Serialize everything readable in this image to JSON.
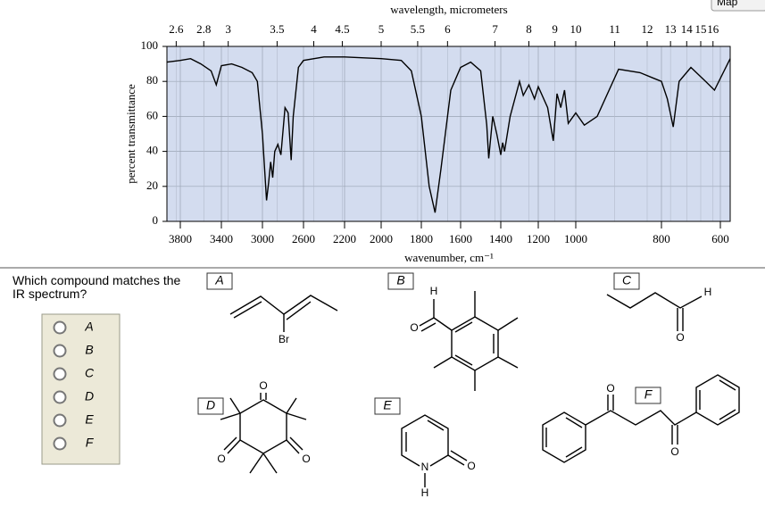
{
  "toolbar": {
    "map": "Map"
  },
  "chart_data": {
    "type": "line",
    "x2label": "wavelength, micrometers",
    "xlabel": "wavenumber, cm⁻¹",
    "ylabel": "percent transmittance",
    "xlim": [
      3950,
      580
    ],
    "xticks": [
      3800,
      3400,
      3000,
      2600,
      2200,
      2000,
      1800,
      1600,
      1400,
      1200,
      1000,
      800,
      600
    ],
    "x2ticks": [
      2.6,
      2.8,
      3,
      3.5,
      4,
      4.5,
      5,
      5.5,
      6,
      7,
      8,
      9,
      10,
      11,
      12,
      13,
      14,
      15,
      16
    ],
    "ylim": [
      0,
      100
    ],
    "yticks": [
      0,
      20,
      40,
      60,
      80,
      100
    ],
    "grid": true,
    "color": "#000000",
    "x": [
      3950,
      3800,
      3700,
      3600,
      3500,
      3450,
      3400,
      3300,
      3200,
      3100,
      3050,
      3000,
      2960,
      2940,
      2920,
      2900,
      2880,
      2850,
      2820,
      2780,
      2750,
      2720,
      2700,
      2650,
      2600,
      2400,
      2200,
      2000,
      1900,
      1850,
      1800,
      1760,
      1730,
      1700,
      1650,
      1600,
      1550,
      1500,
      1470,
      1460,
      1440,
      1420,
      1400,
      1390,
      1380,
      1350,
      1300,
      1280,
      1250,
      1220,
      1200,
      1150,
      1120,
      1100,
      1080,
      1060,
      1040,
      1000,
      980,
      950,
      900,
      850,
      820,
      800,
      780,
      760,
      740,
      700,
      650,
      620,
      580
    ],
    "values": [
      91,
      92,
      93,
      90,
      86,
      78,
      89,
      90,
      88,
      85,
      80,
      50,
      12,
      22,
      34,
      25,
      40,
      44,
      38,
      65,
      62,
      35,
      60,
      88,
      92,
      94,
      94,
      93,
      92,
      86,
      60,
      20,
      5,
      30,
      75,
      88,
      91,
      86,
      55,
      36,
      60,
      50,
      38,
      45,
      40,
      60,
      80,
      72,
      78,
      70,
      77,
      65,
      46,
      73,
      65,
      75,
      56,
      62,
      55,
      60,
      87,
      85,
      82,
      80,
      70,
      54,
      80,
      88,
      80,
      75,
      93
    ]
  },
  "question": {
    "text": "Which compound matches the IR spectrum?",
    "choices": [
      "A",
      "B",
      "C",
      "D",
      "E",
      "F"
    ]
  },
  "structures": [
    {
      "label": "A",
      "atoms": [
        "Br"
      ]
    },
    {
      "label": "B",
      "atoms": [
        "H",
        "O"
      ]
    },
    {
      "label": "C",
      "atoms": [
        "H",
        "O"
      ]
    },
    {
      "label": "D",
      "atoms": [
        "O",
        "O",
        "O"
      ]
    },
    {
      "label": "E",
      "atoms": [
        "N",
        "H",
        "O"
      ]
    },
    {
      "label": "F",
      "atoms": [
        "O",
        "O"
      ]
    }
  ]
}
